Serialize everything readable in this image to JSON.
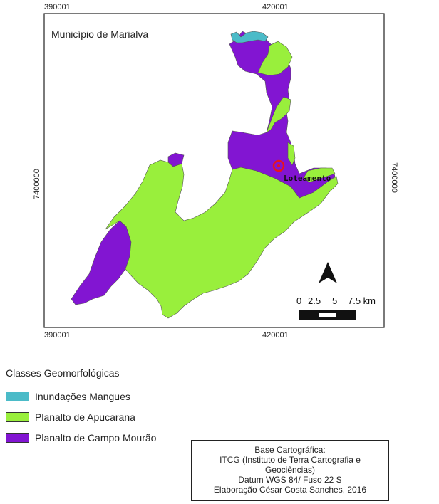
{
  "map": {
    "title": "Município de Marialva",
    "x_ticks": [
      "390001",
      "420001"
    ],
    "y_ticks": [
      "7400000",
      "7400000"
    ],
    "place_label": "Loteamento",
    "scale_labels": [
      "0",
      "2.5",
      "5",
      "7.5 km"
    ],
    "north_arrow": "north-arrow-icon"
  },
  "colors": {
    "inundacoes": "#4bbbc8",
    "apucarana": "#99ef3c",
    "campo_mourao": "#8215d2",
    "marker": "#e8141e"
  },
  "legend": {
    "title": "Classes Geomorfológicas",
    "items": [
      {
        "label": "Inundações Mangues",
        "color": "#4bbbc8"
      },
      {
        "label": "Planalto de Apucarana",
        "color": "#99ef3c"
      },
      {
        "label": "Planalto de Campo Mourão",
        "color": "#8215d2"
      }
    ]
  },
  "credits": {
    "line1": "Base Cartográfica:",
    "line2": "ITCG (Instituto de Terra Cartografia e",
    "line3": "Geociências)",
    "line4": "Datum WGS 84/ Fuso 22 S",
    "line5": "Elaboração César Costa Sanches, 2016"
  }
}
